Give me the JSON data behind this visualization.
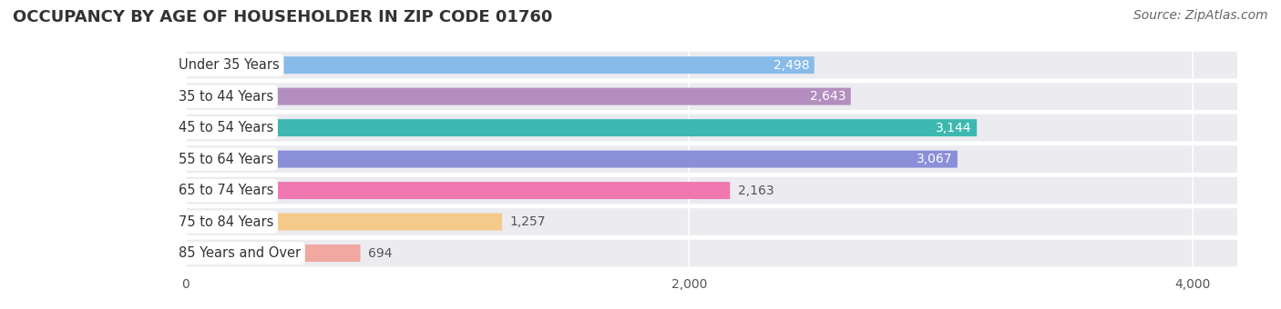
{
  "title": "OCCUPANCY BY AGE OF HOUSEHOLDER IN ZIP CODE 01760",
  "source": "Source: ZipAtlas.com",
  "categories": [
    "Under 35 Years",
    "35 to 44 Years",
    "45 to 54 Years",
    "55 to 64 Years",
    "65 to 74 Years",
    "75 to 84 Years",
    "85 Years and Over"
  ],
  "values": [
    2498,
    2643,
    3144,
    3067,
    2163,
    1257,
    694
  ],
  "bar_colors": [
    "#89BBE8",
    "#B48EBF",
    "#3DB8B0",
    "#8B8FD8",
    "#F077B0",
    "#F5C98A",
    "#F0A8A0"
  ],
  "background_color": "#ffffff",
  "row_bg_color": "#ebebf0",
  "xlim": [
    0,
    4200
  ],
  "xticks": [
    0,
    2000,
    4000
  ],
  "title_fontsize": 13,
  "source_fontsize": 10,
  "value_fontsize": 10,
  "category_fontsize": 10.5
}
